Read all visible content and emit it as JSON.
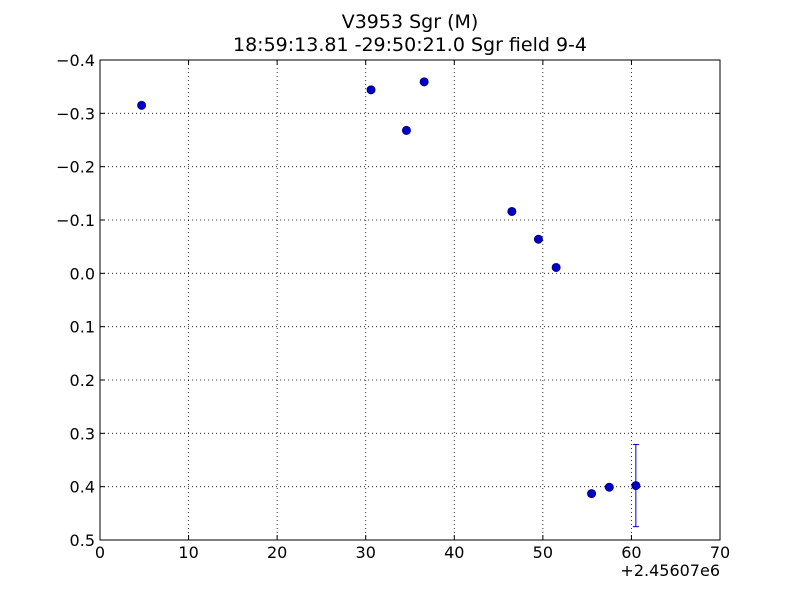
{
  "chart_data": {
    "type": "scatter",
    "title": "V3953 Sgr  (M)",
    "subtitle": "18:59:13.81 -29:50:21.0 Sgr field 9-4",
    "xlabel": "",
    "ylabel": "",
    "x_offset_label": "+2.45607e6",
    "xlim": [
      0,
      70
    ],
    "ylim": [
      0.5,
      -0.4
    ],
    "y_inverted": true,
    "grid": true,
    "x_ticks": [
      "0",
      "10",
      "20",
      "30",
      "40",
      "50",
      "60",
      "70"
    ],
    "y_ticks": [
      "−0.4",
      "−0.3",
      "−0.2",
      "−0.1",
      "0.0",
      "0.1",
      "0.2",
      "0.3",
      "0.4",
      "0.5"
    ],
    "series": [
      {
        "color": "#0000cc",
        "points": [
          {
            "x": 4.7,
            "y": -0.315
          },
          {
            "x": 30.6,
            "y": -0.344
          },
          {
            "x": 34.6,
            "y": -0.268
          },
          {
            "x": 36.6,
            "y": -0.359
          },
          {
            "x": 46.5,
            "y": -0.116
          },
          {
            "x": 49.5,
            "y": -0.064
          },
          {
            "x": 51.5,
            "y": -0.011
          },
          {
            "x": 55.5,
            "y": 0.413
          },
          {
            "x": 57.5,
            "y": 0.401
          },
          {
            "x": 60.5,
            "y": 0.398,
            "err": 0.077
          }
        ]
      }
    ]
  }
}
